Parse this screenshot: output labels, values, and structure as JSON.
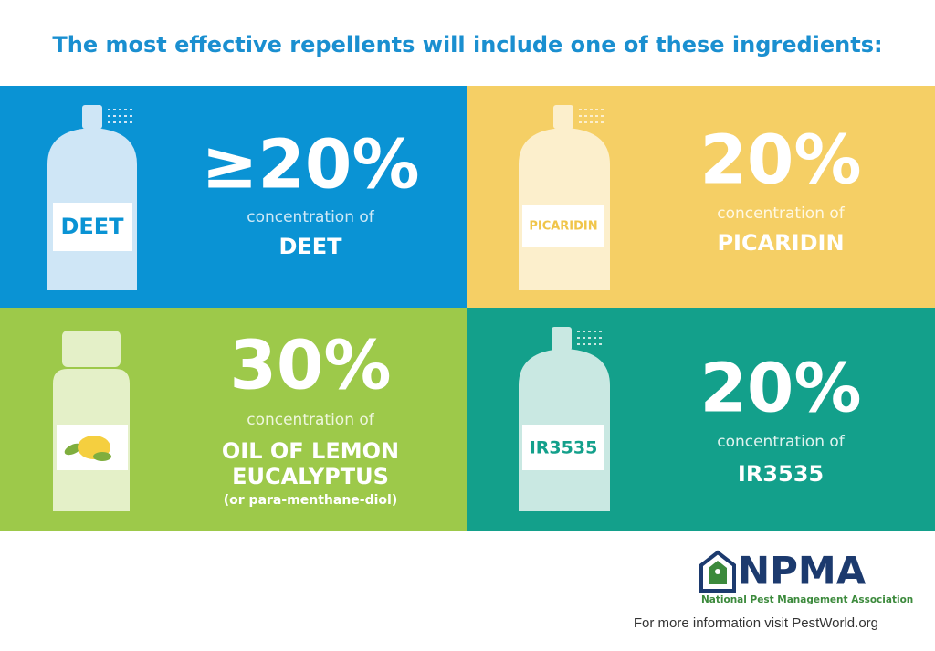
{
  "title": "The most effective repellents will include one of these ingredients:",
  "panels": [
    {
      "bottle_label": "DEET",
      "amount": "≥20%",
      "concentration": "concentration of",
      "ingredient": "DEET"
    },
    {
      "bottle_label": "PICARIDIN",
      "amount": "20%",
      "concentration": "concentration of",
      "ingredient": "PICARIDIN"
    },
    {
      "amount": "30%",
      "concentration": "concentration of",
      "ingredient_lines": [
        "OIL OF LEMON",
        "EUCALYPTUS"
      ],
      "note": "(or para-menthane-diol)"
    },
    {
      "bottle_label": "IR3535",
      "amount": "20%",
      "concentration": "concentration of",
      "ingredient": "IR3535"
    }
  ],
  "footer": {
    "logo": "NPMA",
    "organization": "National Pest Management Association",
    "more_info": "For more information visit PestWorld.org"
  }
}
